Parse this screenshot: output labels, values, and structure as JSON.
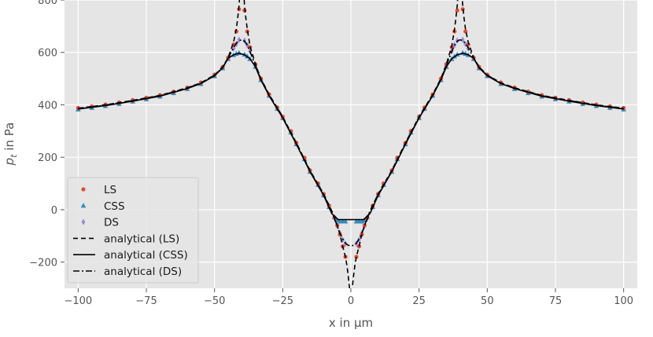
{
  "chart_data": {
    "type": "line",
    "title": "",
    "xlabel": "x in μm",
    "ylabel_main": "p",
    "ylabel_sub": "t",
    "ylabel_rest": " in Pa",
    "xlim": [
      -105,
      105
    ],
    "ylim": [
      -300,
      800
    ],
    "xticks": [
      -100,
      -75,
      -50,
      -25,
      0,
      25,
      50,
      75,
      100
    ],
    "yticks": [
      -200,
      0,
      200,
      400,
      600,
      800
    ],
    "grid": true,
    "legend_position": "lower-left",
    "colors": {
      "background": "#e5e5e5",
      "grid": "#ffffff",
      "LS": "#e24a33",
      "CSS": "#348abd",
      "DS": "#988ed5",
      "analytical": "#000000"
    },
    "series": [
      {
        "name": "LS",
        "kind": "markers",
        "marker": "circle",
        "x": [
          -100,
          -95,
          -90,
          -85,
          -80,
          -75,
          -70,
          -65,
          -60,
          -55,
          -50,
          -47,
          -45,
          -43,
          -42,
          -41,
          -39,
          -38,
          -37,
          -35,
          -33,
          -30,
          -27,
          -25,
          -22,
          -20,
          -17,
          -15,
          -12,
          -10,
          -8,
          -6,
          -5,
          -4,
          -3,
          -2,
          2,
          3,
          4,
          5,
          6,
          8,
          10,
          12,
          15,
          17,
          20,
          22,
          25,
          27,
          30,
          33,
          35,
          37,
          38,
          39,
          41,
          42,
          43,
          45,
          47,
          50,
          55,
          60,
          65,
          70,
          75,
          80,
          85,
          90,
          95,
          100
        ],
        "y": [
          388,
          394,
          401,
          409,
          418,
          427,
          437,
          450,
          466,
          485,
          515,
          545,
          580,
          630,
          680,
          765,
          760,
          680,
          620,
          555,
          500,
          440,
          390,
          355,
          300,
          255,
          198,
          150,
          100,
          60,
          15,
          -30,
          -60,
          -95,
          -140,
          -180,
          -180,
          -140,
          -95,
          -60,
          -30,
          15,
          60,
          100,
          150,
          198,
          255,
          300,
          355,
          390,
          440,
          500,
          555,
          620,
          680,
          760,
          765,
          680,
          630,
          580,
          545,
          515,
          485,
          466,
          450,
          437,
          427,
          418,
          409,
          401,
          394,
          388
        ]
      },
      {
        "name": "CSS",
        "kind": "markers",
        "marker": "triangle",
        "x": [
          -100,
          -95,
          -90,
          -85,
          -80,
          -75,
          -70,
          -65,
          -60,
          -55,
          -50,
          -47,
          -45,
          -43,
          -42,
          -41,
          -39,
          -38,
          -37,
          -35,
          -33,
          -30,
          -27,
          -25,
          -22,
          -20,
          -17,
          -15,
          -12,
          -10,
          -8,
          -6,
          -5,
          -4,
          -3,
          -2,
          2,
          3,
          4,
          5,
          6,
          8,
          10,
          12,
          15,
          17,
          20,
          22,
          25,
          27,
          30,
          33,
          35,
          37,
          38,
          39,
          41,
          42,
          43,
          45,
          47,
          50,
          55,
          60,
          65,
          70,
          75,
          80,
          85,
          90,
          95,
          100
        ],
        "y": [
          383,
          389,
          396,
          404,
          413,
          422,
          432,
          445,
          461,
          480,
          510,
          540,
          575,
          590,
          595,
          598,
          592,
          585,
          575,
          545,
          495,
          435,
          385,
          350,
          295,
          250,
          193,
          145,
          95,
          55,
          10,
          -28,
          -40,
          -45,
          -45,
          -45,
          -45,
          -45,
          -45,
          -40,
          -28,
          10,
          55,
          95,
          145,
          193,
          250,
          295,
          350,
          385,
          435,
          495,
          545,
          575,
          585,
          592,
          598,
          595,
          590,
          575,
          540,
          510,
          480,
          461,
          445,
          432,
          422,
          413,
          404,
          396,
          389,
          383
        ]
      },
      {
        "name": "DS",
        "kind": "markers",
        "marker": "diamond",
        "x": [
          -100,
          -95,
          -90,
          -85,
          -80,
          -75,
          -70,
          -65,
          -60,
          -55,
          -50,
          -47,
          -45,
          -43,
          -42,
          -41,
          -39,
          -38,
          -37,
          -35,
          -33,
          -30,
          -27,
          -25,
          -22,
          -20,
          -17,
          -15,
          -12,
          -10,
          -8,
          -6,
          -5,
          -4,
          -3,
          -2,
          2,
          3,
          4,
          5,
          6,
          8,
          10,
          12,
          15,
          17,
          20,
          22,
          25,
          27,
          30,
          33,
          35,
          37,
          38,
          39,
          41,
          42,
          43,
          45,
          47,
          50,
          55,
          60,
          65,
          70,
          75,
          80,
          85,
          90,
          95,
          100
        ],
        "y": [
          385,
          391,
          398,
          406,
          415,
          424,
          434,
          447,
          463,
          482,
          512,
          542,
          578,
          615,
          632,
          648,
          645,
          628,
          605,
          550,
          498,
          437,
          387,
          352,
          297,
          252,
          195,
          147,
          97,
          57,
          12,
          -33,
          -62,
          -90,
          -115,
          -130,
          -130,
          -115,
          -90,
          -62,
          -33,
          12,
          57,
          97,
          147,
          195,
          252,
          297,
          352,
          387,
          437,
          498,
          550,
          605,
          628,
          645,
          648,
          632,
          615,
          578,
          542,
          512,
          482,
          463,
          447,
          434,
          424,
          415,
          406,
          398,
          391,
          385
        ]
      },
      {
        "name": "analytical (LS)",
        "kind": "line",
        "dash": "dashed",
        "x": [
          -100,
          -90,
          -80,
          -70,
          -60,
          -55,
          -50,
          -47,
          -45,
          -43,
          -42,
          -41.5,
          -41,
          -40.5,
          -40,
          -39.5,
          -39,
          -38.5,
          -38,
          -37,
          -35,
          -33,
          -30,
          -25,
          -20,
          -15,
          -10,
          -7,
          -5,
          -4,
          -3,
          -2,
          -1.5,
          -1,
          -0.5,
          0,
          0.5,
          1,
          1.5,
          2,
          3,
          4,
          5,
          7,
          10,
          15,
          20,
          25,
          30,
          33,
          35,
          37,
          38,
          38.5,
          39,
          39.5,
          40,
          40.5,
          41,
          41.5,
          42,
          43,
          45,
          47,
          50,
          55,
          60,
          70,
          80,
          90,
          100
        ],
        "y": [
          387,
          400,
          417,
          436,
          465,
          484,
          514,
          545,
          580,
          640,
          690,
          730,
          780,
          860,
          900,
          860,
          780,
          730,
          690,
          625,
          555,
          500,
          440,
          355,
          255,
          150,
          60,
          -5,
          -60,
          -95,
          -140,
          -180,
          -210,
          -250,
          -300,
          -330,
          -300,
          -250,
          -210,
          -180,
          -140,
          -95,
          -60,
          -5,
          60,
          150,
          255,
          355,
          440,
          500,
          555,
          625,
          690,
          730,
          780,
          860,
          900,
          860,
          780,
          730,
          690,
          640,
          580,
          545,
          514,
          484,
          465,
          436,
          417,
          400,
          387
        ]
      },
      {
        "name": "analytical (CSS)",
        "kind": "line",
        "dash": "solid",
        "x": [
          -100,
          -90,
          -80,
          -70,
          -60,
          -55,
          -50,
          -47,
          -45,
          -43,
          -41,
          -39,
          -37,
          -35,
          -33,
          -30,
          -25,
          -20,
          -15,
          -10,
          -7,
          -5,
          -4.5,
          -4,
          0,
          4,
          4.5,
          5,
          7,
          10,
          15,
          20,
          25,
          30,
          33,
          35,
          37,
          39,
          41,
          43,
          45,
          47,
          50,
          55,
          60,
          70,
          80,
          90,
          100
        ],
        "y": [
          384,
          397,
          414,
          433,
          462,
          481,
          511,
          541,
          578,
          591,
          597,
          591,
          576,
          545,
          495,
          435,
          350,
          250,
          145,
          55,
          -15,
          -35,
          -38,
          -38,
          -38,
          -38,
          -38,
          -35,
          -15,
          55,
          145,
          250,
          350,
          435,
          495,
          545,
          576,
          591,
          597,
          591,
          578,
          541,
          511,
          481,
          462,
          433,
          414,
          397,
          384
        ]
      },
      {
        "name": "analytical (DS)",
        "kind": "line",
        "dash": "dashdot",
        "x": [
          -100,
          -90,
          -80,
          -70,
          -60,
          -55,
          -50,
          -47,
          -45,
          -43,
          -42,
          -41,
          -40,
          -39,
          -38,
          -37,
          -35,
          -33,
          -30,
          -25,
          -20,
          -15,
          -10,
          -7,
          -5,
          -4,
          -3,
          -2,
          -1,
          0,
          1,
          2,
          3,
          4,
          5,
          7,
          10,
          15,
          20,
          25,
          30,
          33,
          35,
          37,
          38,
          39,
          40,
          41,
          42,
          43,
          45,
          47,
          50,
          55,
          60,
          70,
          80,
          90,
          100
        ],
        "y": [
          386,
          399,
          416,
          435,
          464,
          483,
          513,
          543,
          579,
          618,
          635,
          645,
          648,
          643,
          628,
          604,
          550,
          498,
          437,
          352,
          252,
          147,
          57,
          -8,
          -62,
          -90,
          -112,
          -128,
          -136,
          -138,
          -136,
          -128,
          -112,
          -90,
          -62,
          -8,
          57,
          147,
          252,
          352,
          437,
          498,
          550,
          604,
          628,
          643,
          648,
          645,
          635,
          618,
          579,
          543,
          513,
          483,
          464,
          435,
          416,
          399,
          386
        ]
      }
    ]
  }
}
